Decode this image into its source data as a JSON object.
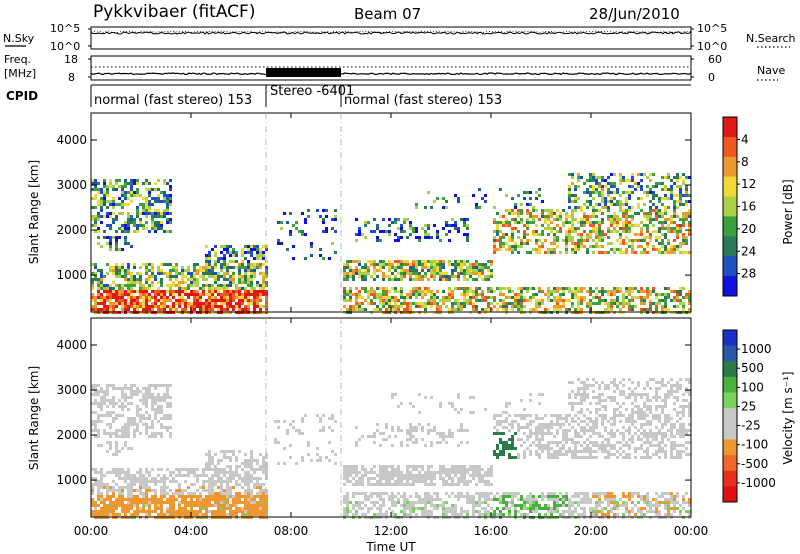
{
  "header": {
    "title": "Pykkvibaer (fitACF)",
    "beam": "Beam 07",
    "date": "28/Jun/2010"
  },
  "strips": {
    "nsky_label": "N.Sky",
    "nsearch_label": "N.Search",
    "freq_label_1": "Freq.",
    "freq_label_2": "[MHz]",
    "nave_label": "Nave",
    "cpid_label": "CPID",
    "left_top_ticks": [
      "10^5",
      "10^0"
    ],
    "right_top_ticks": [
      "10^5",
      "10^0"
    ],
    "freq_ticks": [
      "18",
      "8"
    ],
    "nave_ticks": [
      "60",
      "0"
    ]
  },
  "cpid_segments": [
    {
      "label": "normal (fast stereo) 153",
      "start_hour": 0,
      "end_hour": 7
    },
    {
      "label": "Stereo -6401",
      "start_hour": 7,
      "end_hour": 10
    },
    {
      "label": "normal (fast stereo) 153",
      "start_hour": 10,
      "end_hour": 24
    }
  ],
  "chart_data": [
    {
      "type": "heatmap",
      "name": "power",
      "ylabel": "Slant Range [km]",
      "ylim": [
        180,
        4600
      ],
      "yticks": [
        "1000",
        "2000",
        "3000",
        "4000"
      ],
      "xlim_hours": [
        0,
        24
      ],
      "colorbar_label": "Power [dB]",
      "colorbar_ticks": [
        "4",
        "8",
        "12",
        "16",
        "20",
        "24",
        "28"
      ],
      "colors": [
        "#1010e0",
        "#2050c0",
        "#2a7a5a",
        "#3aa040",
        "#a8d048",
        "#f0d838",
        "#f09830",
        "#f05820",
        "#e01818"
      ],
      "data_gap_hours": [
        7,
        10
      ]
    },
    {
      "type": "heatmap",
      "name": "velocity",
      "ylabel": "Slant Range [km]",
      "ylim": [
        180,
        4600
      ],
      "yticks": [
        "1000",
        "2000",
        "3000",
        "4000"
      ],
      "xlim_hours": [
        0,
        24
      ],
      "colorbar_label": "Velocity [m s⁻¹]",
      "colorbar_ticks": [
        "1000",
        "500",
        "100",
        "25",
        "-25",
        "-100",
        "-500",
        "-1000"
      ],
      "colors": [
        "#1a30c8",
        "#2a58a8",
        "#2a7a4a",
        "#4ab040",
        "#7cd060",
        "#c8c8c8",
        "#f09830",
        "#f06828",
        "#e83020",
        "#e01010"
      ],
      "data_gap_hours": [
        7,
        10
      ]
    }
  ],
  "xaxis": {
    "ticks": [
      "00:00",
      "04:00",
      "08:00",
      "12:00",
      "16:00",
      "20:00",
      "00:00"
    ],
    "label": "Time UT"
  },
  "ui": {
    "power_color_scale": [
      "#e01818",
      "#f05820",
      "#f09830",
      "#f0d838",
      "#a8d048",
      "#3aa040",
      "#2a7a5a",
      "#2050c0",
      "#1010e0"
    ],
    "velocity_color_scale": [
      "#1a30c8",
      "#2a58a8",
      "#2a7a4a",
      "#4ab040",
      "#7cd060",
      "#c8c8c8",
      "#c8c8c8",
      "#f09830",
      "#f06828",
      "#e83020",
      "#e01010"
    ]
  }
}
